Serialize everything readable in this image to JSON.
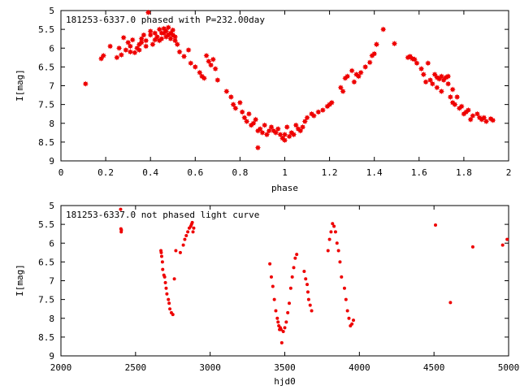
{
  "chart_data": [
    {
      "type": "scatter",
      "title": "181253-6337.0 phased with P=232.00day",
      "xlabel": "phase",
      "ylabel": "I[mag]",
      "xlim": [
        0,
        2
      ],
      "ylim": [
        5,
        9
      ],
      "y_inverted": true,
      "grid": false,
      "marker": "star",
      "color": "#ee0000",
      "xticks": [
        "0",
        "0.2",
        "0.4",
        "0.6",
        "0.8",
        "1",
        "1.2",
        "1.4",
        "1.6",
        "1.8",
        "2"
      ],
      "yticks": [
        "5",
        "5.5",
        "6",
        "6.5",
        "7",
        "7.5",
        "8",
        "8.5",
        "9"
      ],
      "series": [
        {
          "x": [
            0.11,
            0.18,
            0.19,
            0.22,
            0.25,
            0.26,
            0.27,
            0.28,
            0.29,
            0.3,
            0.31,
            0.31,
            0.32,
            0.33,
            0.34,
            0.35,
            0.35,
            0.36,
            0.36,
            0.37,
            0.38,
            0.38,
            0.39,
            0.4,
            0.4,
            0.41,
            0.42,
            0.42,
            0.43,
            0.44,
            0.44,
            0.45,
            0.45,
            0.46,
            0.46,
            0.47,
            0.47,
            0.48,
            0.48,
            0.49,
            0.49,
            0.5,
            0.5,
            0.51,
            0.51,
            0.52,
            0.53,
            0.55,
            0.57,
            0.58,
            0.6,
            0.62,
            0.63,
            0.64,
            0.65,
            0.66,
            0.67,
            0.68,
            0.69,
            0.7,
            0.74,
            0.76,
            0.77,
            0.78,
            0.8,
            0.81,
            0.82,
            0.83,
            0.84,
            0.85,
            0.86,
            0.87,
            0.88,
            0.88,
            0.89,
            0.9,
            0.91,
            0.92,
            0.93,
            0.94,
            0.95,
            0.96,
            0.97,
            0.98,
            0.99,
            1.0,
            1.0,
            1.01,
            1.02,
            1.03,
            1.04,
            1.05,
            1.06,
            1.07,
            1.08,
            1.09,
            1.1,
            1.12,
            1.13,
            1.15,
            1.17,
            1.19,
            1.2,
            1.21,
            1.25,
            1.26,
            1.27,
            1.28,
            1.3,
            1.31,
            1.32,
            1.33,
            1.34,
            1.36,
            1.38,
            1.39,
            1.4,
            1.41,
            1.44,
            1.49,
            1.55,
            1.56,
            1.57,
            1.58,
            1.59,
            1.61,
            1.62,
            1.63,
            1.64,
            1.65,
            1.66,
            1.67,
            1.68,
            1.68,
            1.69,
            1.7,
            1.7,
            1.71,
            1.72,
            1.73,
            1.73,
            1.74,
            1.75,
            1.75,
            1.76,
            1.77,
            1.78,
            1.79,
            1.8,
            1.81,
            1.82,
            1.83,
            1.84,
            1.86,
            1.87,
            1.88,
            1.89,
            1.9,
            1.92,
            1.93
          ],
          "y": [
            6.95,
            6.28,
            6.2,
            5.95,
            6.25,
            6.0,
            6.18,
            5.72,
            6.05,
            5.85,
            6.1,
            5.95,
            5.78,
            6.12,
            6.0,
            6.05,
            5.9,
            5.75,
            5.85,
            5.65,
            5.8,
            5.95,
            5.05,
            5.55,
            5.65,
            5.9,
            5.78,
            5.6,
            5.7,
            5.5,
            5.8,
            5.6,
            5.75,
            5.48,
            5.6,
            5.7,
            5.55,
            5.65,
            5.45,
            5.6,
            5.75,
            5.52,
            5.65,
            5.7,
            5.8,
            5.9,
            6.1,
            6.22,
            6.05,
            6.4,
            6.5,
            6.65,
            6.75,
            6.8,
            6.2,
            6.35,
            6.45,
            6.3,
            6.55,
            6.85,
            7.15,
            7.3,
            7.5,
            7.6,
            7.45,
            7.7,
            7.85,
            7.95,
            7.75,
            8.05,
            8.0,
            7.9,
            8.2,
            8.65,
            8.15,
            8.25,
            8.05,
            8.3,
            8.2,
            8.1,
            8.2,
            8.25,
            8.15,
            8.3,
            8.4,
            8.45,
            8.3,
            8.1,
            8.35,
            8.25,
            8.3,
            8.05,
            8.15,
            8.2,
            8.1,
            7.95,
            7.85,
            7.75,
            7.8,
            7.7,
            7.65,
            7.55,
            7.5,
            7.45,
            7.05,
            7.15,
            6.8,
            6.75,
            6.6,
            6.9,
            6.7,
            6.75,
            6.65,
            6.5,
            6.38,
            6.2,
            6.15,
            5.9,
            5.5,
            5.88,
            6.25,
            6.22,
            6.28,
            6.3,
            6.4,
            6.55,
            6.7,
            6.9,
            6.4,
            6.85,
            6.95,
            6.7,
            6.78,
            7.05,
            6.82,
            6.75,
            7.15,
            6.85,
            6.78,
            6.95,
            6.75,
            7.3,
            7.1,
            7.45,
            7.5,
            7.3,
            7.6,
            7.55,
            7.75,
            7.7,
            7.65,
            7.9,
            7.8,
            7.75,
            7.85,
            7.9,
            7.85,
            7.95,
            7.88,
            7.92
          ]
        }
      ]
    },
    {
      "type": "scatter",
      "title": "181253-6337.0 not phased light curve",
      "xlabel": "hjd0",
      "ylabel": "I[mag]",
      "xlim": [
        2000,
        5000
      ],
      "ylim": [
        5,
        9
      ],
      "y_inverted": true,
      "grid": false,
      "marker": "dot",
      "color": "#ee0000",
      "xticks": [
        "2000",
        "2500",
        "3000",
        "3500",
        "4000",
        "4500",
        "5000"
      ],
      "yticks": [
        "5",
        "5.5",
        "6",
        "6.5",
        "7",
        "7.5",
        "8",
        "8.5",
        "9"
      ],
      "series": [
        {
          "x": [
            2400,
            2402,
            2404,
            2405,
            2670,
            2672,
            2675,
            2680,
            2682,
            2690,
            2695,
            2700,
            2705,
            2710,
            2720,
            2725,
            2730,
            2740,
            2750,
            2760,
            2770,
            2800,
            2820,
            2830,
            2840,
            2850,
            2860,
            2870,
            2875,
            2880,
            2885,
            2890,
            3400,
            3410,
            3420,
            3430,
            3440,
            3450,
            3455,
            3460,
            3465,
            3470,
            3475,
            3480,
            3490,
            3500,
            3510,
            3520,
            3530,
            3540,
            3550,
            3560,
            3570,
            3580,
            3630,
            3640,
            3650,
            3655,
            3660,
            3670,
            3680,
            3790,
            3800,
            3810,
            3820,
            3830,
            3840,
            3850,
            3860,
            3870,
            3880,
            3900,
            3910,
            3920,
            3930,
            3940,
            3950,
            3960,
            4510,
            4610,
            4760,
            4960,
            4990
          ],
          "y": [
            5.1,
            5.62,
            5.7,
            5.65,
            6.2,
            6.25,
            6.35,
            6.5,
            6.7,
            6.85,
            6.9,
            7.05,
            7.2,
            7.35,
            7.5,
            7.6,
            7.75,
            7.85,
            7.9,
            6.95,
            6.2,
            6.25,
            6.05,
            5.9,
            5.8,
            5.7,
            5.6,
            5.55,
            5.5,
            5.45,
            5.7,
            5.6,
            6.55,
            6.9,
            7.15,
            7.5,
            7.8,
            8.0,
            8.1,
            8.2,
            8.3,
            8.25,
            8.3,
            8.65,
            8.35,
            8.25,
            8.1,
            7.85,
            7.6,
            7.2,
            6.9,
            6.65,
            6.4,
            6.3,
            6.75,
            6.95,
            7.1,
            7.3,
            7.5,
            7.65,
            7.8,
            6.2,
            5.9,
            5.7,
            5.48,
            5.55,
            5.7,
            6.0,
            6.2,
            6.5,
            6.9,
            7.2,
            7.5,
            7.8,
            8.0,
            8.2,
            8.15,
            8.05,
            5.52,
            7.58,
            6.1,
            6.05,
            5.9
          ]
        }
      ]
    }
  ]
}
